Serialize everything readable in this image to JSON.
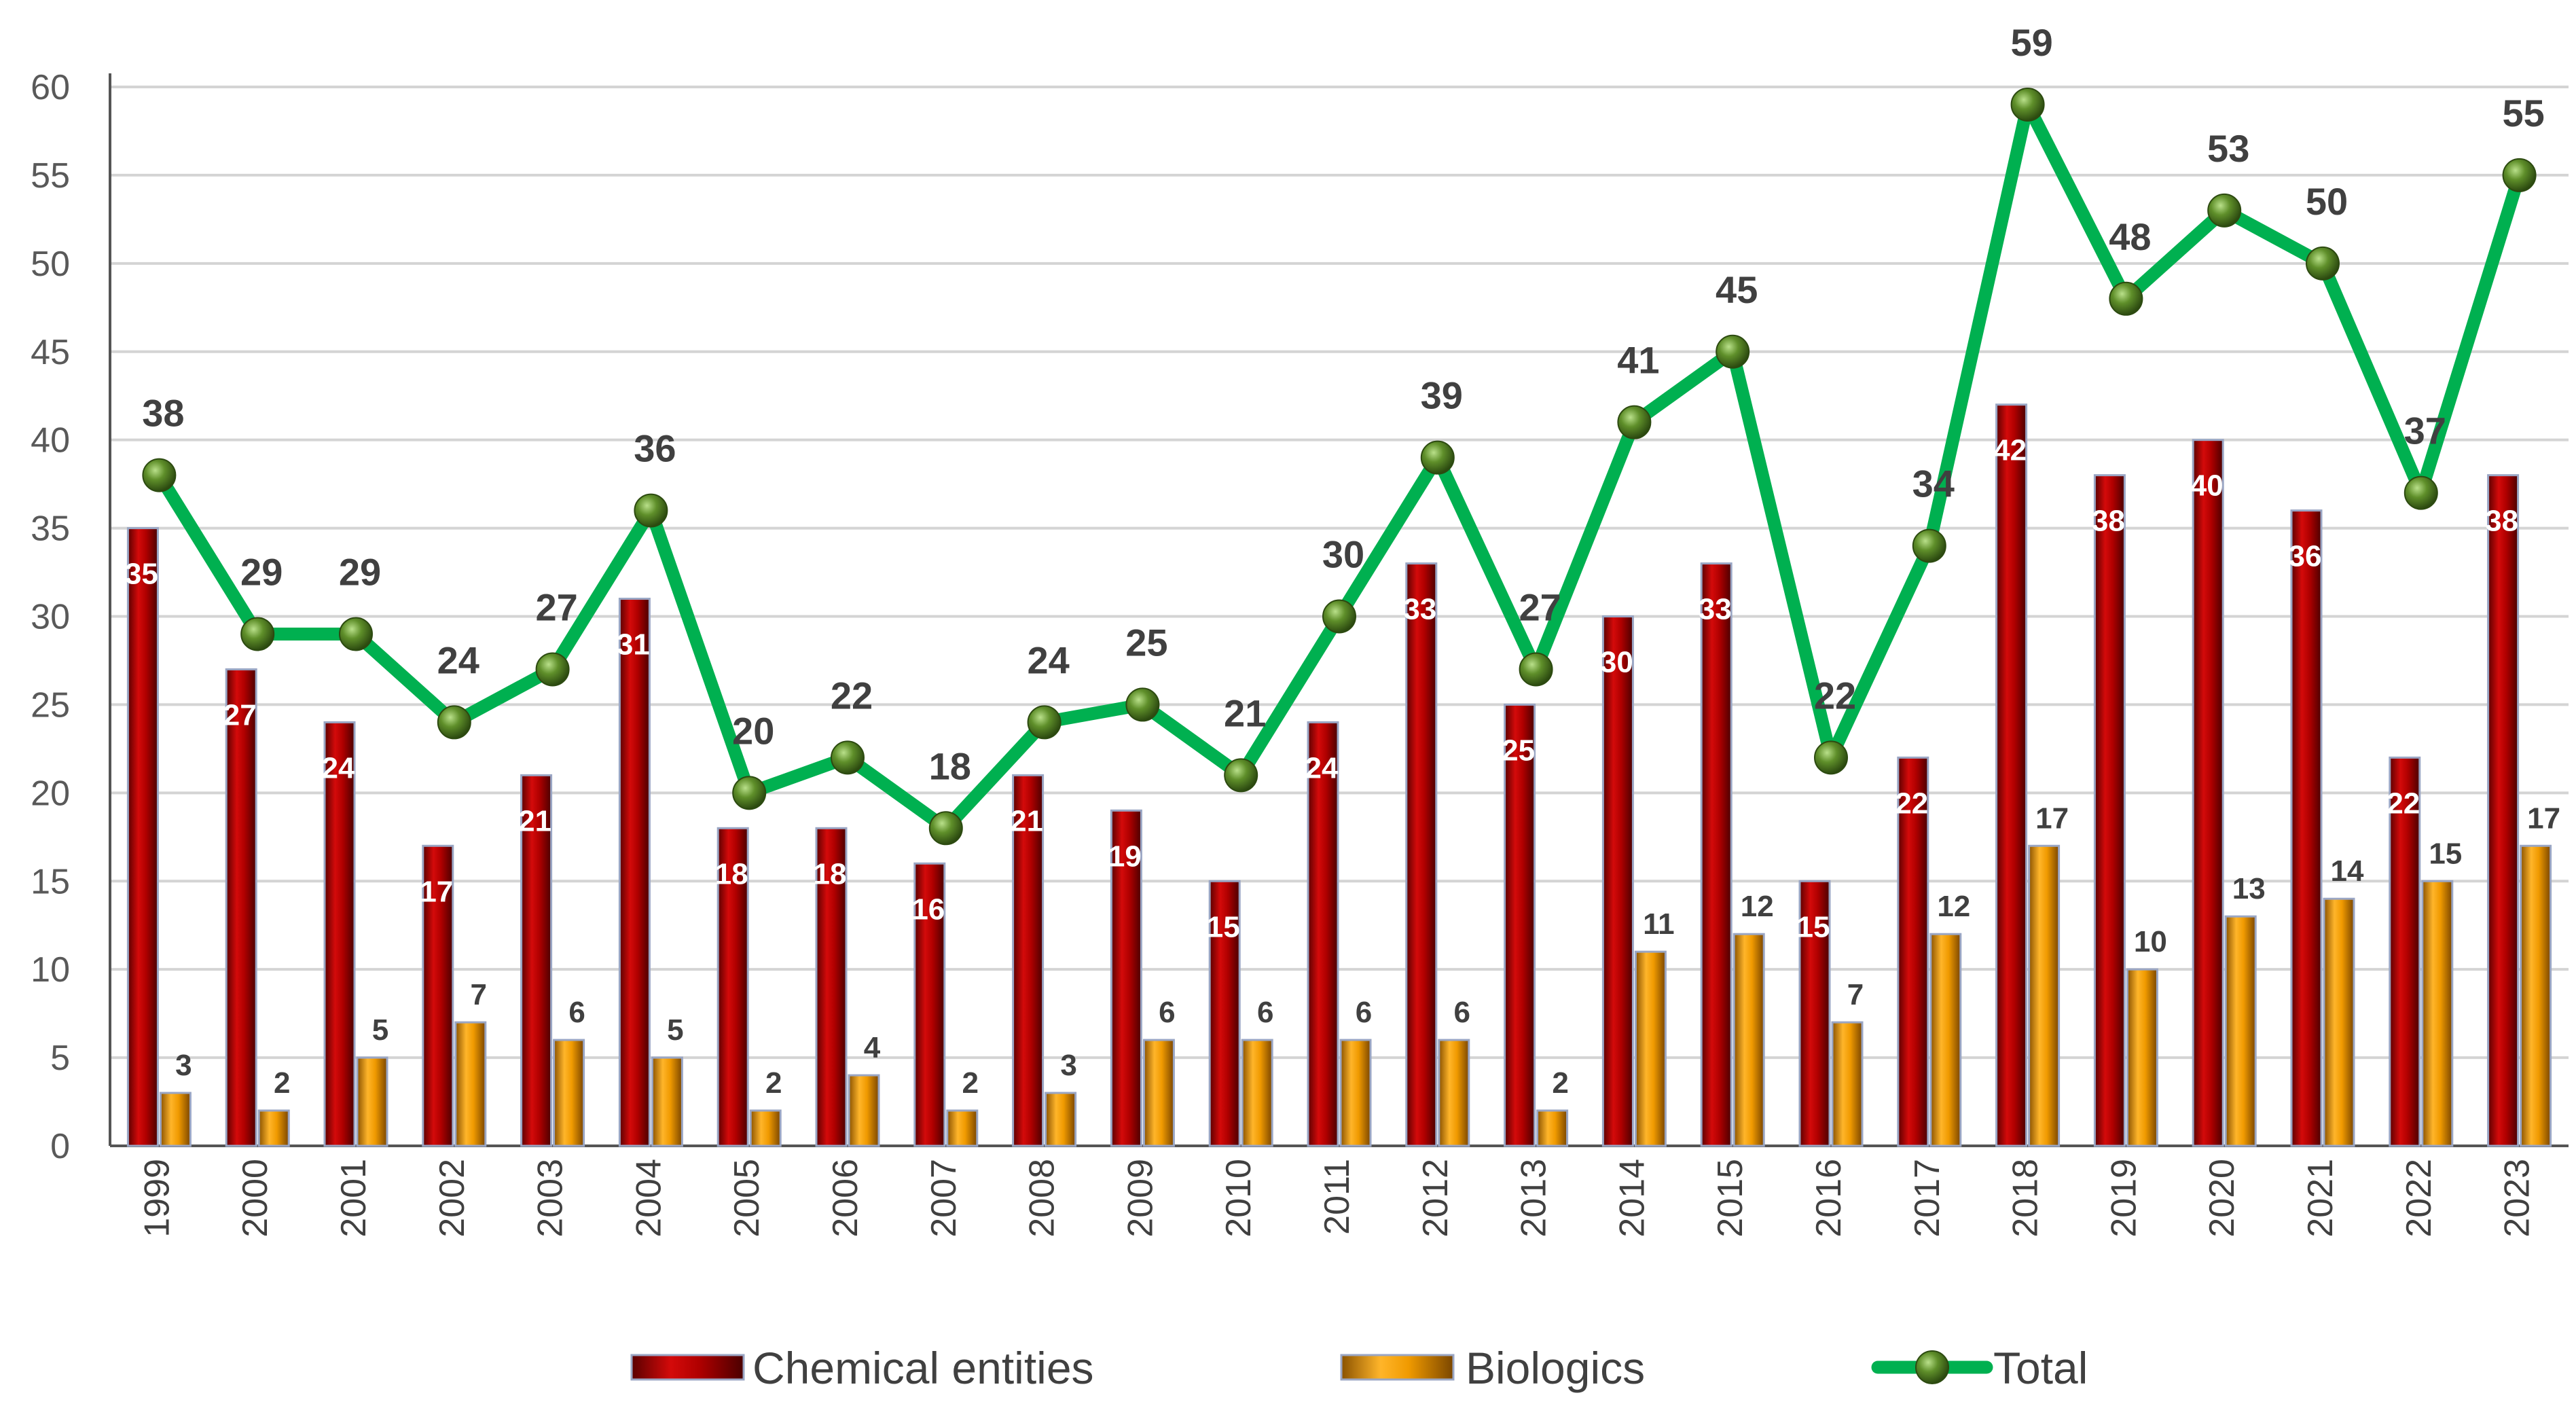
{
  "chart_data": {
    "type": "bar",
    "title": "",
    "xlabel": "",
    "ylabel": "",
    "ylim": [
      0,
      60
    ],
    "yticks": [
      "0",
      "5",
      "10",
      "15",
      "20",
      "25",
      "30",
      "35",
      "40",
      "45",
      "50",
      "55",
      "60"
    ],
    "grid": true,
    "legend_position": "bottom",
    "categories": [
      "1999",
      "2000",
      "2001",
      "2002",
      "2003",
      "2004",
      "2005",
      "2006",
      "2007",
      "2008",
      "2009",
      "2010",
      "2011",
      "2012",
      "2013",
      "2014",
      "2015",
      "2016",
      "2017",
      "2018",
      "2019",
      "2020",
      "2021",
      "2022",
      "2023"
    ],
    "series": [
      {
        "name": "Chemical entities",
        "type": "bar",
        "color": "#c00000",
        "values": [
          35,
          27,
          24,
          17,
          21,
          31,
          18,
          18,
          16,
          21,
          19,
          15,
          24,
          33,
          25,
          30,
          33,
          15,
          22,
          42,
          38,
          40,
          36,
          22,
          38
        ]
      },
      {
        "name": "Biologics",
        "type": "bar",
        "color": "#f0a000",
        "values": [
          3,
          2,
          5,
          7,
          6,
          5,
          2,
          4,
          2,
          3,
          6,
          6,
          6,
          6,
          2,
          11,
          12,
          7,
          12,
          17,
          10,
          13,
          14,
          15,
          17
        ]
      },
      {
        "name": "Total",
        "type": "line",
        "color": "#00b050",
        "values": [
          38,
          29,
          29,
          24,
          27,
          36,
          20,
          22,
          18,
          24,
          25,
          21,
          30,
          39,
          27,
          41,
          45,
          22,
          34,
          59,
          48,
          53,
          50,
          37,
          55
        ]
      }
    ]
  }
}
